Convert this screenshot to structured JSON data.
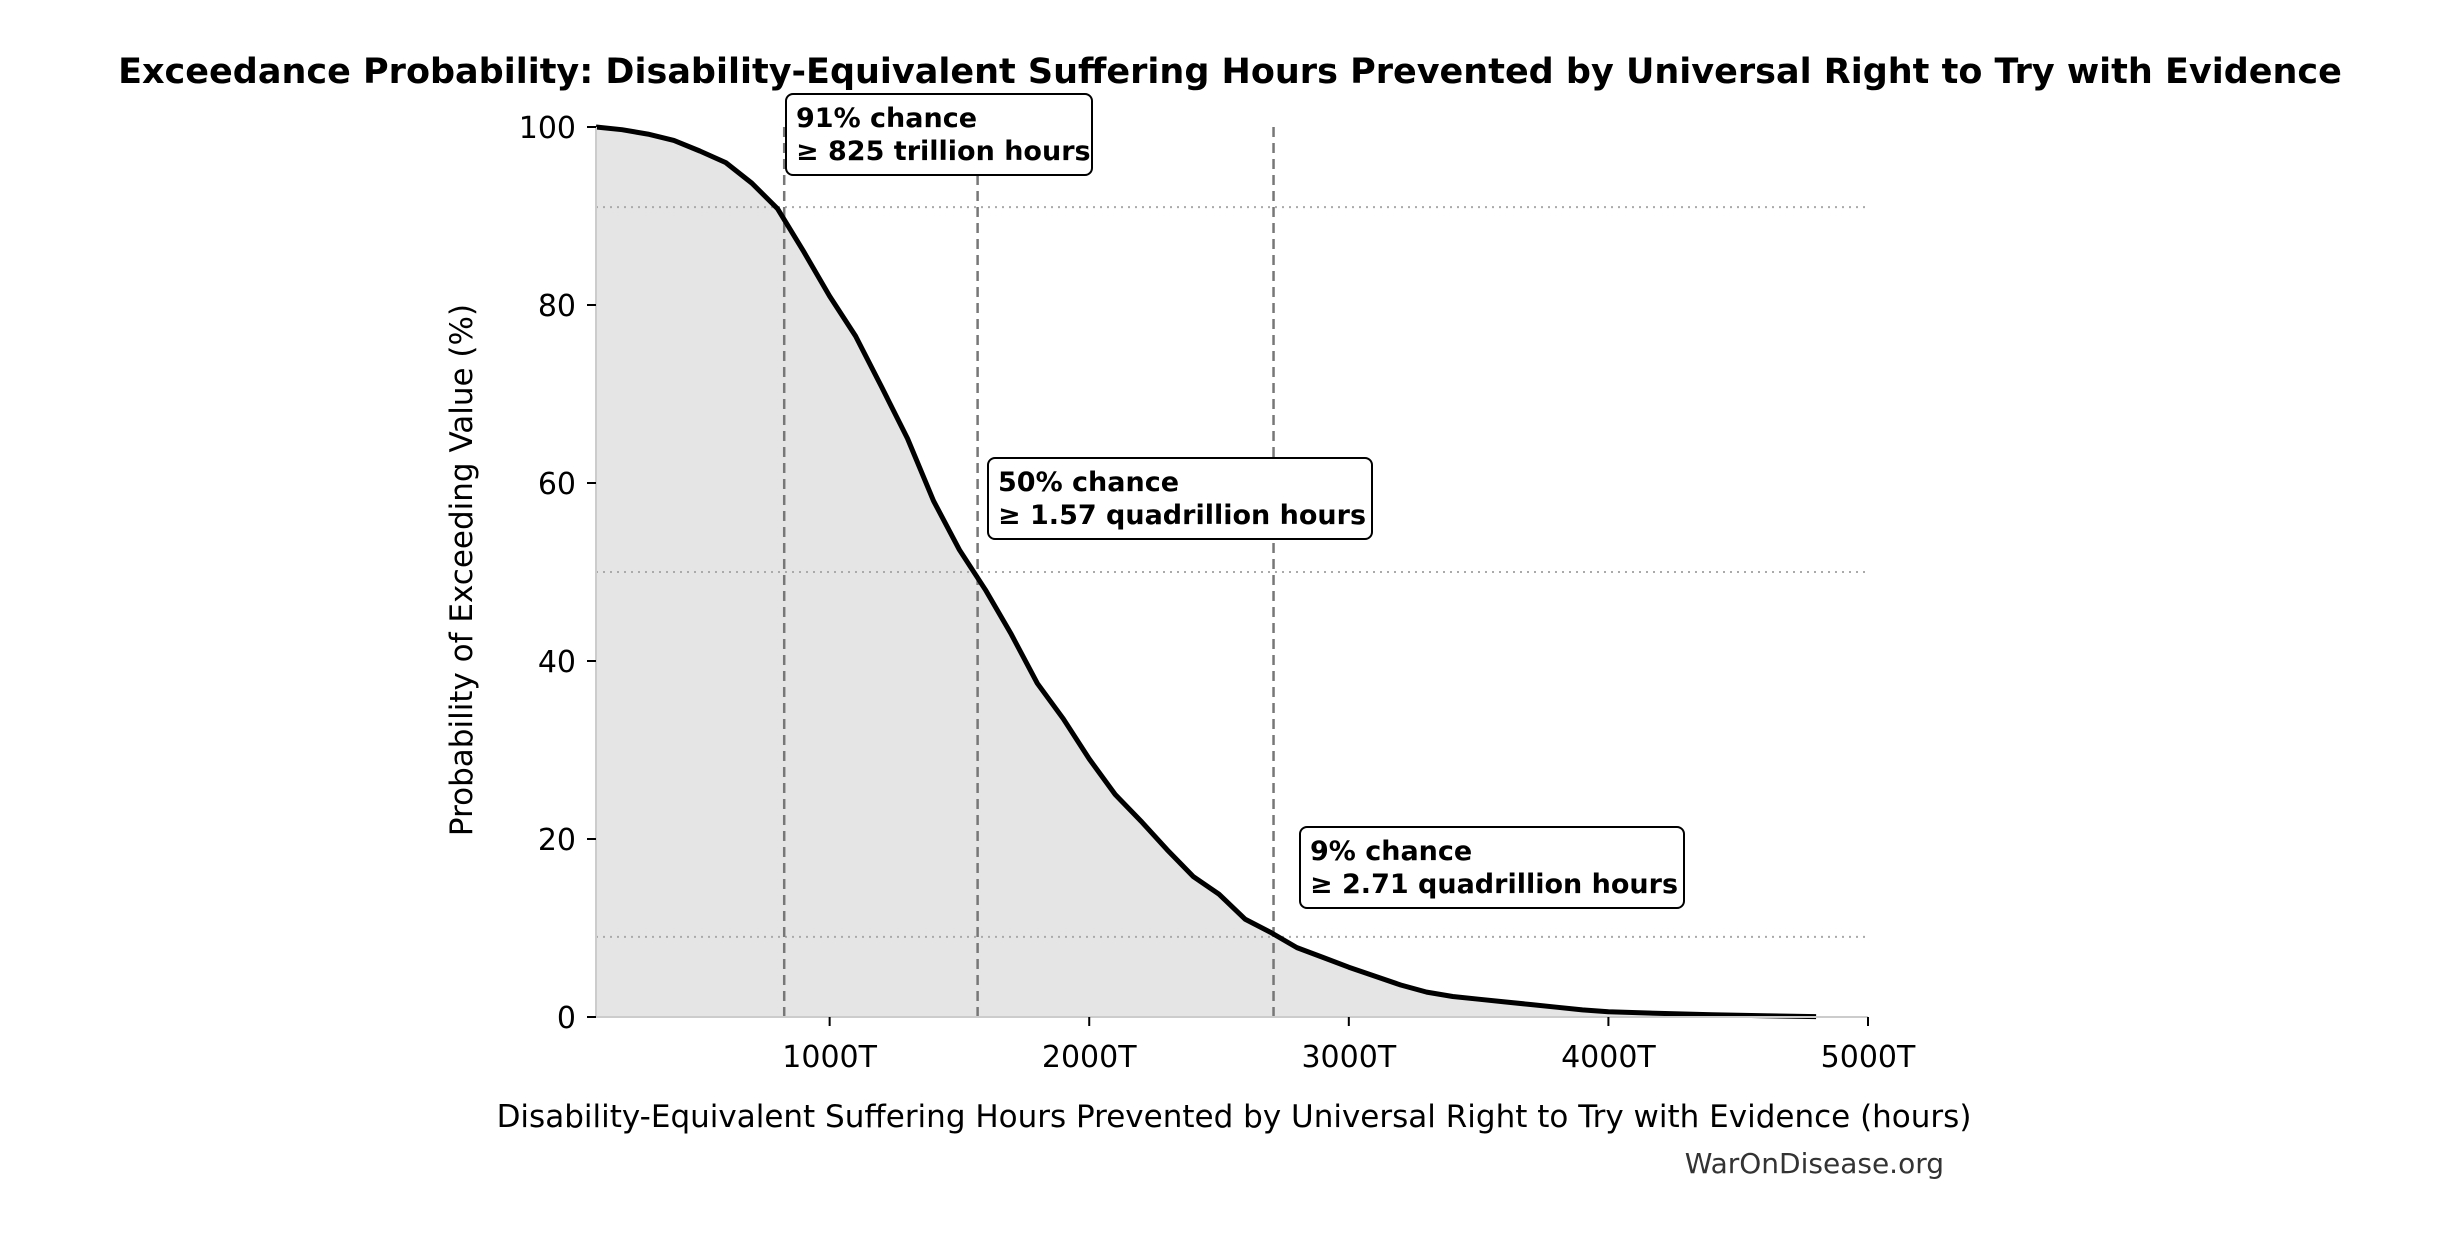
{
  "chart_data": {
    "type": "area",
    "title": "Exceedance Probability: Disability-Equivalent Suffering Hours Prevented by Universal Right to Try with Evidence",
    "xlabel": "Disability-Equivalent Suffering Hours Prevented by Universal Right to Try with Evidence (hours)",
    "ylabel": "Probability of Exceeding Value (%)",
    "xlim": [
      100,
      5000
    ],
    "ylim": [
      0,
      100
    ],
    "x_ticks": [
      {
        "value": 1000,
        "label": "1000T"
      },
      {
        "value": 2000,
        "label": "2000T"
      },
      {
        "value": 3000,
        "label": "3000T"
      },
      {
        "value": 4000,
        "label": "4000T"
      },
      {
        "value": 5000,
        "label": "5000T"
      }
    ],
    "y_ticks": [
      {
        "value": 0,
        "label": "0"
      },
      {
        "value": 20,
        "label": "20"
      },
      {
        "value": 40,
        "label": "40"
      },
      {
        "value": 60,
        "label": "60"
      },
      {
        "value": 80,
        "label": "80"
      },
      {
        "value": 100,
        "label": "100"
      }
    ],
    "series": [
      {
        "x": [
          100,
          200,
          300,
          400,
          500,
          600,
          700,
          800,
          900,
          1000,
          1100,
          1200,
          1300,
          1400,
          1500,
          1600,
          1700,
          1800,
          1900,
          2000,
          2100,
          2200,
          2300,
          2400,
          2500,
          2600,
          2700,
          2800,
          2900,
          3000,
          3100,
          3200,
          3300,
          3400,
          3500,
          3600,
          3700,
          3800,
          3900,
          4000,
          4200,
          4400,
          4600,
          4800
        ],
        "y": [
          100,
          99.7,
          99.2,
          98.5,
          97.3,
          96.0,
          93.7,
          90.8,
          86.0,
          81.0,
          76.5,
          70.8,
          65.0,
          58.0,
          52.5,
          48.0,
          43.0,
          37.5,
          33.5,
          29.0,
          25.0,
          22.0,
          18.8,
          15.8,
          13.8,
          11.0,
          9.5,
          7.8,
          6.7,
          5.6,
          4.6,
          3.6,
          2.8,
          2.3,
          2.0,
          1.7,
          1.4,
          1.1,
          0.8,
          0.6,
          0.4,
          0.25,
          0.15,
          0.05
        ]
      }
    ],
    "fill_color": "#e5e5e5",
    "line_color": "#000000",
    "grid": false,
    "reference_lines": [
      {
        "x": 825,
        "y": 91
      },
      {
        "x": 1570,
        "y": 50
      },
      {
        "x": 2710,
        "y": 9
      }
    ],
    "annotations": [
      {
        "line1": "91% chance",
        "line2": "≥ 825 trillion hours",
        "x": 825,
        "y": 91
      },
      {
        "line1": "50% chance",
        "line2": "≥ 1.57 quadrillion hours",
        "x": 1570,
        "y": 50
      },
      {
        "line1": "9% chance",
        "line2": "≥ 2.71 quadrillion hours",
        "x": 2710,
        "y": 9
      }
    ],
    "watermark": "WarOnDisease.org"
  }
}
